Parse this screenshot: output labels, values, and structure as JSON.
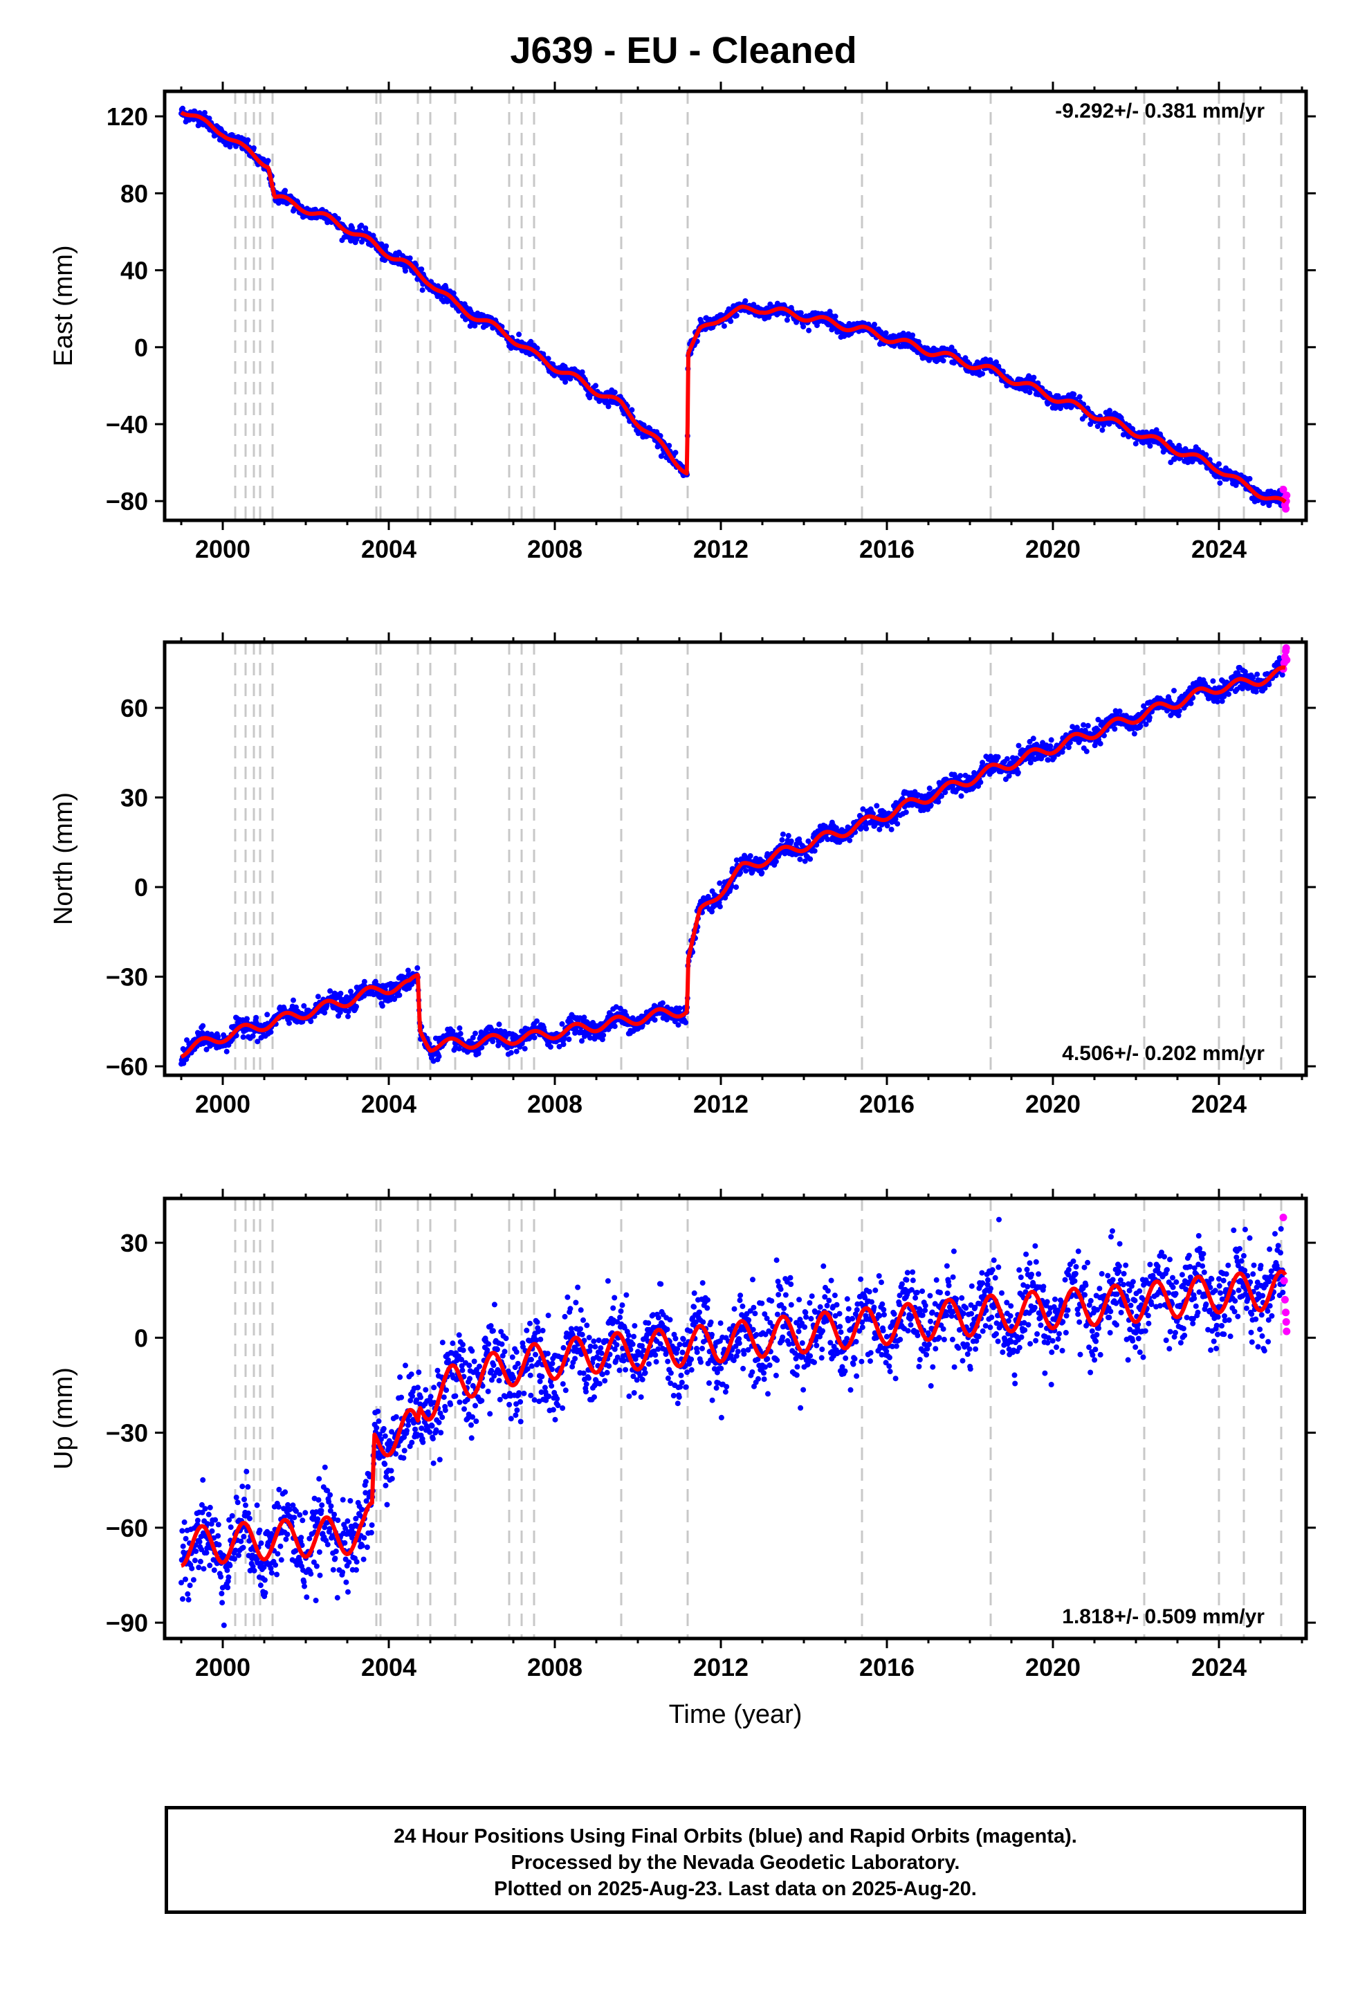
{
  "title": "J639  - EU - Cleaned",
  "colors": {
    "final_orbits": "#0000ff",
    "rapid_orbits": "#ff00ff",
    "model": "#ff0000",
    "event_lines": "#c8c8c8"
  },
  "footer": {
    "line1": "24 Hour Positions Using Final Orbits (blue) and Rapid Orbits (magenta).",
    "line2": "Processed by the Nevada Geodetic Laboratory.",
    "line3": "Plotted on 2025-Aug-23. Last data on 2025-Aug-20."
  },
  "chart_data": [
    {
      "type": "scatter",
      "component": "east",
      "ylabel": "East (mm)",
      "rate_label": "-9.292+/- 0.381 mm/yr",
      "rate_position": "top-right",
      "xlim": [
        1998.6,
        2026.1
      ],
      "ylim": [
        -90,
        133
      ],
      "x_ticks": [
        2000,
        2004,
        2008,
        2012,
        2016,
        2020,
        2024
      ],
      "y_ticks": [
        -80,
        -40,
        0,
        40,
        80,
        120
      ],
      "event_lines": [
        2000.3,
        2000.55,
        2000.75,
        2000.9,
        2001.2,
        2003.7,
        2003.8,
        2004.7,
        2005.0,
        2005.6,
        2006.9,
        2007.2,
        2007.5,
        2009.6,
        2011.2,
        2015.4,
        2018.5,
        2022.2,
        2024.0,
        2024.6,
        2025.5
      ],
      "trend_keypoints": [
        [
          1999.0,
          124
        ],
        [
          1999.5,
          117
        ],
        [
          2000.0,
          112
        ],
        [
          2000.5,
          103
        ],
        [
          2000.8,
          99
        ],
        [
          2001.1,
          95
        ],
        [
          2001.25,
          78
        ],
        [
          2002.0,
          72
        ],
        [
          2003.0,
          62
        ],
        [
          2003.8,
          51
        ],
        [
          2004.3,
          45
        ],
        [
          2004.7,
          38
        ],
        [
          2005.0,
          34
        ],
        [
          2005.6,
          22
        ],
        [
          2006.9,
          6
        ],
        [
          2007.5,
          -4
        ],
        [
          2009.6,
          -30
        ],
        [
          2011.19,
          -65
        ],
        [
          2011.21,
          -3
        ],
        [
          2011.5,
          8
        ],
        [
          2012.0,
          16
        ],
        [
          2012.5,
          19
        ],
        [
          2013.0,
          20
        ],
        [
          2014.0,
          16
        ],
        [
          2015.4,
          9
        ],
        [
          2018.5,
          -12
        ],
        [
          2022.2,
          -46
        ],
        [
          2024.0,
          -63
        ],
        [
          2024.6,
          -72
        ],
        [
          2025.6,
          -82
        ]
      ],
      "model_line": {
        "seasonal_amplitude": 2.0
      },
      "scatter": {
        "final_points": 2400,
        "rapid_points": 6,
        "noise": 1.8
      },
      "rapid_orbit_points": [
        [
          2025.55,
          -74
        ],
        [
          2025.57,
          -79
        ],
        [
          2025.59,
          -82
        ],
        [
          2025.61,
          -84
        ],
        [
          2025.62,
          -80
        ],
        [
          2025.63,
          -77
        ]
      ]
    },
    {
      "type": "scatter",
      "component": "north",
      "ylabel": "North (mm)",
      "rate_label": "4.506+/- 0.202 mm/yr",
      "rate_position": "bottom-right",
      "xlim": [
        1998.6,
        2026.1
      ],
      "ylim": [
        -63,
        82
      ],
      "x_ticks": [
        2000,
        2004,
        2008,
        2012,
        2016,
        2020,
        2024
      ],
      "y_ticks": [
        -60,
        -30,
        0,
        30,
        60
      ],
      "event_lines": [
        2000.3,
        2000.55,
        2000.75,
        2000.9,
        2001.2,
        2003.7,
        2003.8,
        2004.7,
        2005.0,
        2005.6,
        2006.9,
        2007.2,
        2007.5,
        2009.6,
        2011.2,
        2015.4,
        2018.5,
        2022.2,
        2024.0,
        2024.6,
        2025.5
      ],
      "trend_keypoints": [
        [
          1999.0,
          -55
        ],
        [
          2000.0,
          -50
        ],
        [
          2001.0,
          -46
        ],
        [
          2002.0,
          -42
        ],
        [
          2003.0,
          -38
        ],
        [
          2003.8,
          -34
        ],
        [
          2004.5,
          -33
        ],
        [
          2004.7,
          -30
        ],
        [
          2004.75,
          -48
        ],
        [
          2005.0,
          -53
        ],
        [
          2006.0,
          -52
        ],
        [
          2007.5,
          -50
        ],
        [
          2009.6,
          -45
        ],
        [
          2011.19,
          -41
        ],
        [
          2011.21,
          -24
        ],
        [
          2011.5,
          -9
        ],
        [
          2012.0,
          -1
        ],
        [
          2012.5,
          6
        ],
        [
          2013.0,
          9
        ],
        [
          2015.4,
          21
        ],
        [
          2018.5,
          39
        ],
        [
          2022.2,
          58
        ],
        [
          2024.0,
          67
        ],
        [
          2024.6,
          68
        ],
        [
          2025.6,
          72
        ]
      ],
      "model_line": {
        "seasonal_amplitude": 1.8
      },
      "scatter": {
        "final_points": 2400,
        "rapid_points": 6,
        "noise": 1.6
      },
      "rapid_orbit_points": [
        [
          2025.55,
          73
        ],
        [
          2025.57,
          75
        ],
        [
          2025.59,
          77
        ],
        [
          2025.61,
          79
        ],
        [
          2025.62,
          80
        ],
        [
          2025.63,
          76
        ]
      ]
    },
    {
      "type": "scatter",
      "component": "up",
      "ylabel": "Up (mm)",
      "xlabel": "Time (year)",
      "rate_label": "1.818+/- 0.509 mm/yr",
      "rate_position": "bottom-right",
      "xlim": [
        1998.6,
        2026.1
      ],
      "ylim": [
        -95,
        44
      ],
      "x_ticks": [
        2000,
        2004,
        2008,
        2012,
        2016,
        2020,
        2024
      ],
      "y_ticks": [
        -90,
        -60,
        -30,
        0,
        30
      ],
      "event_lines": [
        2000.3,
        2000.55,
        2000.75,
        2000.9,
        2001.2,
        2003.7,
        2003.8,
        2004.7,
        2005.0,
        2005.6,
        2006.9,
        2007.2,
        2007.5,
        2009.6,
        2011.2,
        2015.4,
        2018.5,
        2022.2,
        2024.0,
        2024.6,
        2025.5
      ],
      "trend_keypoints": [
        [
          1999.0,
          -66
        ],
        [
          2001.0,
          -64
        ],
        [
          2003.4,
          -62
        ],
        [
          2003.6,
          -57
        ],
        [
          2003.65,
          -34
        ],
        [
          2004.0,
          -31
        ],
        [
          2004.7,
          -28
        ],
        [
          2004.75,
          -22
        ],
        [
          2005.6,
          -14
        ],
        [
          2007.0,
          -9
        ],
        [
          2009.0,
          -5
        ],
        [
          2011.0,
          -3
        ],
        [
          2013.0,
          0
        ],
        [
          2016.0,
          4
        ],
        [
          2019.0,
          8
        ],
        [
          2022.0,
          11
        ],
        [
          2024.0,
          14
        ],
        [
          2025.6,
          15
        ]
      ],
      "model_line": {
        "seasonal_amplitude": 6.0
      },
      "scatter": {
        "final_points": 2400,
        "rapid_points": 6,
        "noise": 6.5
      },
      "rapid_orbit_points": [
        [
          2025.55,
          38
        ],
        [
          2025.57,
          18
        ],
        [
          2025.59,
          12
        ],
        [
          2025.61,
          8
        ],
        [
          2025.62,
          5
        ],
        [
          2025.63,
          2
        ]
      ]
    }
  ]
}
